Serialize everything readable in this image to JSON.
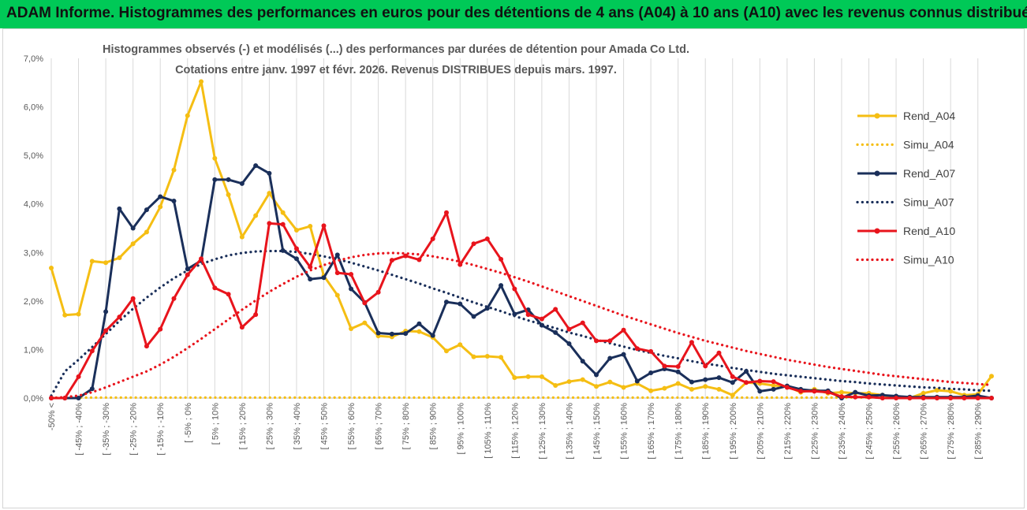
{
  "banner": {
    "title": "ADAM Informe. Histogrammes des performances en euros pour des détentions de 4 ans (A04) à 10 ans (A10) avec les revenus connus distribués"
  },
  "chart_data": {
    "type": "line",
    "title": "Histogrammes observés (-) et modélisés (...) des performances par durées de détention pour Amada Co Ltd.",
    "subtitle": "Cotations entre janv. 1997 et févr. 2026. Revenus DISTRIBUES depuis mars. 1997.",
    "xlabel": "",
    "ylabel": "",
    "ylim": [
      0,
      7
    ],
    "yticks": [
      "0,0%",
      "1,0%",
      "2,0%",
      "3,0%",
      "4,0%",
      "5,0%",
      "6,0%",
      "7,0%"
    ],
    "legend_position": "right",
    "grid": "vertical",
    "categories": [
      "-50% <",
      "[ -50% ; -45% ]",
      "[ -45% ; -40%",
      "[ -40% ; -35% ]",
      "[ -35% ; -30%",
      "[ -30% ; -25% ]",
      "[ -25% ; -20%",
      "[ -20% ; -15% ]",
      "[ -15% ; -10%",
      "[ -10% ; -5% ]",
      "[ -5% ; 0%",
      "[ 0% ; 5% ]",
      "[ 5% ; 10%",
      "[ 10% ; 15% ]",
      "[ 15% ; 20%",
      "[ 20% ; 25% ]",
      "[ 25% ; 30%",
      "[ 30% ; 35% ]",
      "[ 35% ; 40%",
      "[ 40% ; 45% ]",
      "[ 45% ; 50%",
      "[ 50% ; 55% ]",
      "[ 55% ; 60%",
      "[ 60% ; 65% ]",
      "[ 65% ; 70%",
      "[ 70% ; 75% ]",
      "[ 75% ; 80%",
      "[ 80% ; 85% ]",
      "[ 85% ; 90%",
      "[ 90% ; 95% ]",
      "[ 95% ; 100%",
      "[ 100% ; 105% ]",
      "[ 105% ; 110%",
      "[ 110% ; 115% ]",
      "[ 115% ; 120%",
      "[ 120% ; 125% ]",
      "[ 125% ; 130%",
      "[ 130% ; 135% ]",
      "[ 135% ; 140%",
      "[ 140% ; 145% ]",
      "[ 145% ; 150%",
      "[ 150% ; 155% ]",
      "[ 155% ; 160%",
      "[ 160% ; 165% ]",
      "[ 165% ; 170%",
      "[ 170% ; 175% ]",
      "[ 175% ; 180%",
      "[ 180% ; 185% ]",
      "[ 185% ; 190%",
      "[ 190% ; 195% ]",
      "[ 195% ; 200%",
      "[ 200% ; 205% ]",
      "[ 205% ; 210%",
      "[ 210% ; 215% ]",
      "[ 215% ; 220%",
      "[ 220% ; 225% ]",
      "[ 225% ; 230%",
      "[ 230% ; 235% ]",
      "[ 235% ; 240%",
      "[ 240% ; 245% ]",
      "[ 245% ; 250%",
      "[ 250% ; 255% ]",
      "[ 255% ; 260%",
      "[ 260% ; 265% ]",
      "[ 265% ; 270%",
      "[ 270% ; 275% ]",
      "[ 275% ; 280%",
      "[ 280% ; 285% ]",
      "[ 285% ; 290%",
      "[ 290% ; 295% ]"
    ],
    "xtick_labels_every": 2,
    "series": [
      {
        "name": "Rend_A04",
        "color": "#f5be13",
        "style": "solid",
        "values": [
          2.68,
          1.71,
          1.73,
          2.82,
          2.79,
          2.89,
          3.18,
          3.42,
          3.94,
          4.7,
          5.82,
          6.52,
          4.94,
          4.19,
          3.32,
          3.76,
          4.22,
          3.82,
          3.46,
          3.54,
          2.52,
          2.12,
          1.43,
          1.55,
          1.28,
          1.26,
          1.38,
          1.37,
          1.25,
          0.97,
          1.1,
          0.85,
          0.86,
          0.84,
          0.42,
          0.44,
          0.44,
          0.26,
          0.34,
          0.38,
          0.24,
          0.33,
          0.22,
          0.3,
          0.15,
          0.2,
          0.3,
          0.18,
          0.24,
          0.18,
          0.06,
          0.32,
          0.3,
          0.26,
          0.24,
          0.12,
          0.18,
          0.1,
          0.12,
          0.1,
          0.1,
          0.06,
          0.02,
          0.0,
          0.1,
          0.16,
          0.14,
          0.06,
          0.08,
          0.45
        ]
      },
      {
        "name": "Simu_A04",
        "color": "#f5be13",
        "style": "dotted",
        "values": [
          0.01,
          0.01,
          0.01,
          0.01,
          0.01,
          0.01,
          0.01,
          0.01,
          0.01,
          0.01,
          0.01,
          0.01,
          0.01,
          0.01,
          0.01,
          0.01,
          0.01,
          0.01,
          0.01,
          0.01,
          0.01,
          0.01,
          0.01,
          0.01,
          0.01,
          0.01,
          0.01,
          0.01,
          0.01,
          0.01,
          0.01,
          0.01,
          0.01,
          0.01,
          0.01,
          0.01,
          0.01,
          0.01,
          0.01,
          0.01,
          0.01,
          0.01,
          0.01,
          0.01,
          0.01,
          0.01,
          0.01,
          0.01,
          0.01,
          0.01,
          0.01,
          0.01,
          0.01,
          0.01,
          0.01,
          0.01,
          0.01,
          0.01,
          0.01,
          0.01,
          0.01,
          0.01,
          0.01,
          0.01,
          0.01,
          0.01,
          0.01,
          0.01,
          0.01,
          0.01
        ]
      },
      {
        "name": "Rend_A07",
        "color": "#1a2f5a",
        "style": "solid",
        "values": [
          0.0,
          0.0,
          0.0,
          0.19,
          1.78,
          3.9,
          3.5,
          3.88,
          4.15,
          4.06,
          2.66,
          2.83,
          4.5,
          4.5,
          4.42,
          4.79,
          4.63,
          3.04,
          2.87,
          2.45,
          2.48,
          2.95,
          2.25,
          1.97,
          1.34,
          1.32,
          1.33,
          1.53,
          1.29,
          1.98,
          1.94,
          1.68,
          1.85,
          2.32,
          1.73,
          1.82,
          1.5,
          1.35,
          1.12,
          0.76,
          0.48,
          0.82,
          0.9,
          0.35,
          0.52,
          0.6,
          0.54,
          0.33,
          0.38,
          0.42,
          0.32,
          0.55,
          0.14,
          0.18,
          0.25,
          0.18,
          0.15,
          0.15,
          0.0,
          0.12,
          0.05,
          0.06,
          0.04,
          0.02,
          0.02,
          0.02,
          0.02,
          0.02,
          0.05,
          0.0
        ]
      },
      {
        "name": "Simu_A07",
        "color": "#1a2f5a",
        "style": "dotted",
        "values": [
          0.05,
          0.55,
          0.79,
          1.05,
          1.32,
          1.59,
          1.84,
          2.07,
          2.28,
          2.47,
          2.63,
          2.76,
          2.86,
          2.94,
          2.99,
          3.02,
          3.03,
          3.03,
          3.01,
          2.97,
          2.92,
          2.86,
          2.79,
          2.71,
          2.63,
          2.54,
          2.45,
          2.36,
          2.26,
          2.17,
          2.07,
          1.97,
          1.88,
          1.79,
          1.69,
          1.6,
          1.52,
          1.44,
          1.35,
          1.28,
          1.2,
          1.13,
          1.06,
          0.99,
          0.93,
          0.87,
          0.82,
          0.76,
          0.71,
          0.67,
          0.62,
          0.58,
          0.54,
          0.5,
          0.47,
          0.44,
          0.41,
          0.38,
          0.35,
          0.33,
          0.3,
          0.28,
          0.26,
          0.24,
          0.22,
          0.21,
          0.19,
          0.18,
          0.16,
          0.15
        ]
      },
      {
        "name": "Rend_A10",
        "color": "#e8141c",
        "style": "solid",
        "values": [
          0.0,
          0.0,
          0.44,
          0.97,
          1.39,
          1.67,
          2.05,
          1.07,
          1.42,
          2.05,
          2.54,
          2.87,
          2.27,
          2.14,
          1.46,
          1.72,
          3.6,
          3.58,
          3.08,
          2.7,
          3.55,
          2.58,
          2.55,
          1.96,
          2.18,
          2.84,
          2.93,
          2.85,
          3.28,
          3.82,
          2.75,
          3.18,
          3.28,
          2.86,
          2.25,
          1.72,
          1.63,
          1.83,
          1.42,
          1.55,
          1.18,
          1.18,
          1.4,
          1.02,
          0.96,
          0.66,
          0.65,
          1.15,
          0.66,
          0.93,
          0.44,
          0.32,
          0.35,
          0.34,
          0.22,
          0.14,
          0.14,
          0.12,
          0.03,
          0.02,
          0.02,
          0.0,
          0.0,
          0.0,
          0.0,
          0.0,
          0.0,
          0.0,
          0.0,
          0.0
        ]
      },
      {
        "name": "Simu_A10",
        "color": "#e8141c",
        "style": "dotted",
        "values": [
          0.0,
          0.02,
          0.05,
          0.12,
          0.22,
          0.33,
          0.44,
          0.55,
          0.69,
          0.85,
          1.03,
          1.22,
          1.42,
          1.62,
          1.82,
          2.01,
          2.19,
          2.35,
          2.5,
          2.63,
          2.74,
          2.83,
          2.9,
          2.95,
          2.98,
          2.99,
          2.98,
          2.96,
          2.92,
          2.87,
          2.81,
          2.74,
          2.66,
          2.58,
          2.49,
          2.4,
          2.3,
          2.2,
          2.1,
          2.0,
          1.9,
          1.8,
          1.7,
          1.61,
          1.52,
          1.43,
          1.34,
          1.26,
          1.18,
          1.11,
          1.04,
          0.97,
          0.91,
          0.85,
          0.79,
          0.74,
          0.69,
          0.64,
          0.6,
          0.56,
          0.52,
          0.48,
          0.45,
          0.42,
          0.39,
          0.36,
          0.33,
          0.31,
          0.29,
          0.27
        ]
      }
    ]
  }
}
